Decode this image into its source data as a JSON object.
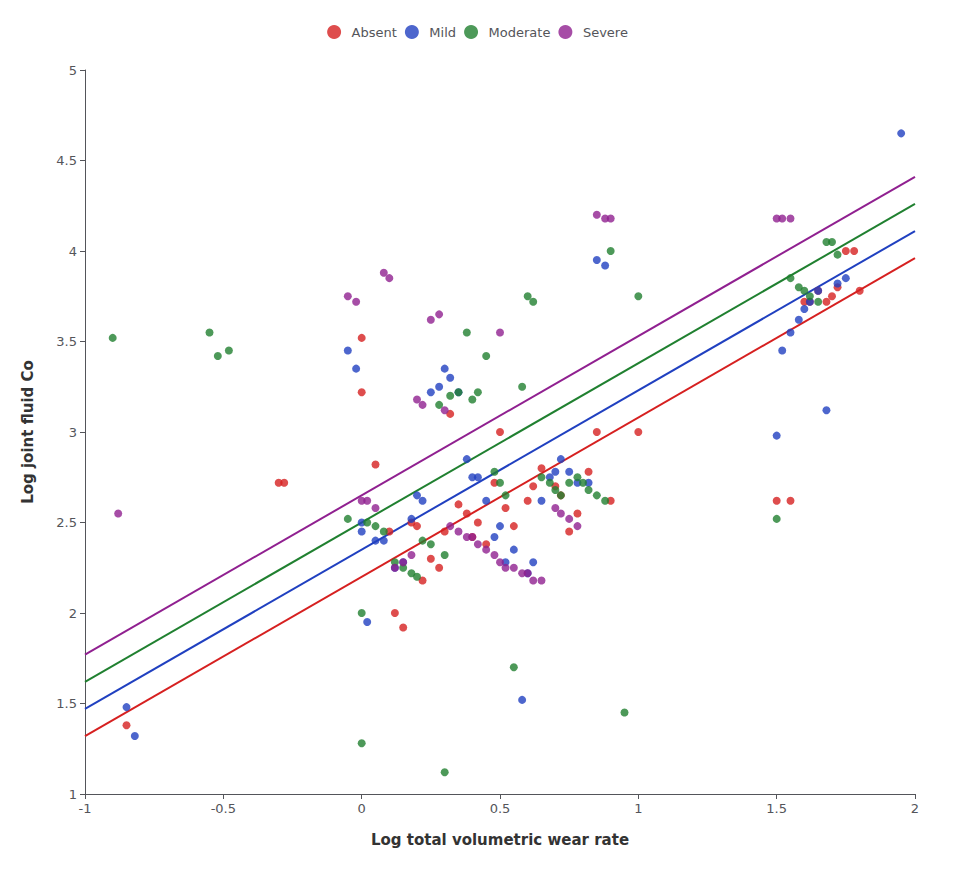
{
  "chart_data": {
    "type": "scatter",
    "xlabel": "Log total volumetric wear rate",
    "ylabel": "Log joint fluid Co",
    "xlim": [
      -1,
      2
    ],
    "ylim": [
      1,
      5
    ],
    "xticks": [
      -1,
      -0.5,
      0,
      0.5,
      1,
      1.5,
      2
    ],
    "yticks": [
      1,
      1.5,
      2,
      2.5,
      3,
      3.5,
      4,
      4.5,
      5
    ],
    "grid": false,
    "legend": "top",
    "series": [
      {
        "name": "Absent",
        "color": "#d62020",
        "regression_line": [
          [
            -1,
            1.32
          ],
          [
            2,
            3.96
          ]
        ],
        "values": [
          [
            -0.85,
            1.38
          ],
          [
            -0.3,
            2.72
          ],
          [
            -0.28,
            2.72
          ],
          [
            0.0,
            3.52
          ],
          [
            0.0,
            3.22
          ],
          [
            0.05,
            2.82
          ],
          [
            0.1,
            2.45
          ],
          [
            0.12,
            2.0
          ],
          [
            0.15,
            1.92
          ],
          [
            0.18,
            2.5
          ],
          [
            0.2,
            2.48
          ],
          [
            0.22,
            2.18
          ],
          [
            0.25,
            2.3
          ],
          [
            0.28,
            2.25
          ],
          [
            0.3,
            2.45
          ],
          [
            0.32,
            3.1
          ],
          [
            0.35,
            2.6
          ],
          [
            0.38,
            2.55
          ],
          [
            0.4,
            2.42
          ],
          [
            0.42,
            2.5
          ],
          [
            0.45,
            2.38
          ],
          [
            0.48,
            2.72
          ],
          [
            0.5,
            3.0
          ],
          [
            0.52,
            2.58
          ],
          [
            0.55,
            2.48
          ],
          [
            0.6,
            2.62
          ],
          [
            0.62,
            2.7
          ],
          [
            0.65,
            2.8
          ],
          [
            0.7,
            2.7
          ],
          [
            0.72,
            2.65
          ],
          [
            0.75,
            2.45
          ],
          [
            0.78,
            2.55
          ],
          [
            0.82,
            2.78
          ],
          [
            0.85,
            3.0
          ],
          [
            0.9,
            2.62
          ],
          [
            1.0,
            3.0
          ],
          [
            1.5,
            2.62
          ],
          [
            1.55,
            2.62
          ],
          [
            1.6,
            3.72
          ],
          [
            1.62,
            3.72
          ],
          [
            1.65,
            3.78
          ],
          [
            1.68,
            3.72
          ],
          [
            1.7,
            3.75
          ],
          [
            1.72,
            3.8
          ],
          [
            1.75,
            4.0
          ],
          [
            1.78,
            4.0
          ],
          [
            1.8,
            3.78
          ]
        ]
      },
      {
        "name": "Mild",
        "color": "#2040c0",
        "regression_line": [
          [
            -1,
            1.47
          ],
          [
            2,
            4.11
          ]
        ],
        "values": [
          [
            -0.85,
            1.48
          ],
          [
            -0.82,
            1.32
          ],
          [
            -0.05,
            3.45
          ],
          [
            -0.02,
            3.35
          ],
          [
            0.0,
            2.5
          ],
          [
            0.0,
            2.45
          ],
          [
            0.02,
            1.95
          ],
          [
            0.05,
            2.4
          ],
          [
            0.08,
            2.4
          ],
          [
            0.12,
            2.25
          ],
          [
            0.15,
            2.28
          ],
          [
            0.18,
            2.52
          ],
          [
            0.2,
            2.65
          ],
          [
            0.22,
            2.62
          ],
          [
            0.25,
            3.22
          ],
          [
            0.28,
            3.25
          ],
          [
            0.3,
            3.35
          ],
          [
            0.32,
            3.3
          ],
          [
            0.35,
            3.22
          ],
          [
            0.38,
            2.85
          ],
          [
            0.4,
            2.75
          ],
          [
            0.42,
            2.75
          ],
          [
            0.45,
            2.62
          ],
          [
            0.48,
            2.42
          ],
          [
            0.5,
            2.48
          ],
          [
            0.52,
            2.28
          ],
          [
            0.55,
            2.35
          ],
          [
            0.58,
            1.52
          ],
          [
            0.6,
            2.22
          ],
          [
            0.62,
            2.28
          ],
          [
            0.65,
            2.62
          ],
          [
            0.68,
            2.75
          ],
          [
            0.7,
            2.78
          ],
          [
            0.72,
            2.85
          ],
          [
            0.75,
            2.78
          ],
          [
            0.78,
            2.72
          ],
          [
            0.82,
            2.72
          ],
          [
            0.85,
            3.95
          ],
          [
            0.88,
            3.92
          ],
          [
            1.5,
            2.98
          ],
          [
            1.52,
            3.45
          ],
          [
            1.55,
            3.55
          ],
          [
            1.58,
            3.62
          ],
          [
            1.6,
            3.68
          ],
          [
            1.62,
            3.72
          ],
          [
            1.65,
            3.78
          ],
          [
            1.72,
            3.82
          ],
          [
            1.75,
            3.85
          ],
          [
            1.95,
            4.65
          ],
          [
            1.68,
            3.12
          ]
        ]
      },
      {
        "name": "Moderate",
        "color": "#208030",
        "regression_line": [
          [
            -1,
            1.62
          ],
          [
            2,
            4.26
          ]
        ],
        "values": [
          [
            -0.9,
            3.52
          ],
          [
            -0.55,
            3.55
          ],
          [
            -0.52,
            3.42
          ],
          [
            -0.48,
            3.45
          ],
          [
            -0.05,
            2.52
          ],
          [
            0.0,
            2.0
          ],
          [
            0.0,
            1.28
          ],
          [
            0.02,
            2.5
          ],
          [
            0.05,
            2.48
          ],
          [
            0.08,
            2.45
          ],
          [
            0.12,
            2.28
          ],
          [
            0.15,
            2.25
          ],
          [
            0.18,
            2.22
          ],
          [
            0.2,
            2.2
          ],
          [
            0.22,
            2.4
          ],
          [
            0.25,
            2.38
          ],
          [
            0.28,
            3.15
          ],
          [
            0.3,
            2.32
          ],
          [
            0.32,
            3.2
          ],
          [
            0.35,
            3.22
          ],
          [
            0.38,
            3.55
          ],
          [
            0.4,
            3.18
          ],
          [
            0.42,
            3.22
          ],
          [
            0.45,
            3.42
          ],
          [
            0.48,
            2.78
          ],
          [
            0.5,
            2.72
          ],
          [
            0.52,
            2.65
          ],
          [
            0.55,
            1.7
          ],
          [
            0.58,
            3.25
          ],
          [
            0.6,
            3.75
          ],
          [
            0.62,
            3.72
          ],
          [
            0.65,
            2.75
          ],
          [
            0.68,
            2.72
          ],
          [
            0.7,
            2.68
          ],
          [
            0.72,
            2.65
          ],
          [
            0.75,
            2.72
          ],
          [
            0.78,
            2.75
          ],
          [
            0.8,
            2.72
          ],
          [
            0.82,
            2.68
          ],
          [
            0.85,
            2.65
          ],
          [
            0.88,
            2.62
          ],
          [
            0.9,
            4.0
          ],
          [
            0.95,
            1.45
          ],
          [
            1.0,
            3.75
          ],
          [
            0.3,
            1.12
          ],
          [
            1.5,
            2.52
          ],
          [
            1.55,
            3.85
          ],
          [
            1.58,
            3.8
          ],
          [
            1.6,
            3.78
          ],
          [
            1.62,
            3.75
          ],
          [
            1.65,
            3.72
          ],
          [
            1.68,
            4.05
          ],
          [
            1.7,
            4.05
          ],
          [
            1.72,
            3.98
          ]
        ]
      },
      {
        "name": "Severe",
        "color": "#902090",
        "regression_line": [
          [
            -1,
            1.77
          ],
          [
            2,
            4.41
          ]
        ],
        "values": [
          [
            -0.88,
            2.55
          ],
          [
            -0.05,
            3.75
          ],
          [
            -0.02,
            3.72
          ],
          [
            0.0,
            2.62
          ],
          [
            0.02,
            2.62
          ],
          [
            0.05,
            2.58
          ],
          [
            0.08,
            3.88
          ],
          [
            0.1,
            3.85
          ],
          [
            0.12,
            2.25
          ],
          [
            0.15,
            2.28
          ],
          [
            0.18,
            2.32
          ],
          [
            0.2,
            3.18
          ],
          [
            0.22,
            3.15
          ],
          [
            0.25,
            3.62
          ],
          [
            0.28,
            3.65
          ],
          [
            0.3,
            3.12
          ],
          [
            0.32,
            2.48
          ],
          [
            0.35,
            2.45
          ],
          [
            0.38,
            2.42
          ],
          [
            0.4,
            2.42
          ],
          [
            0.42,
            2.38
          ],
          [
            0.45,
            2.35
          ],
          [
            0.48,
            2.32
          ],
          [
            0.5,
            3.55
          ],
          [
            0.5,
            2.28
          ],
          [
            0.52,
            2.25
          ],
          [
            0.55,
            2.25
          ],
          [
            0.58,
            2.22
          ],
          [
            0.6,
            2.22
          ],
          [
            0.62,
            2.18
          ],
          [
            0.65,
            2.18
          ],
          [
            0.7,
            2.58
          ],
          [
            0.72,
            2.55
          ],
          [
            0.75,
            2.52
          ],
          [
            0.78,
            2.48
          ],
          [
            0.85,
            4.2
          ],
          [
            0.88,
            4.18
          ],
          [
            0.9,
            4.18
          ],
          [
            1.5,
            4.18
          ],
          [
            1.52,
            4.18
          ],
          [
            1.55,
            4.18
          ]
        ]
      }
    ]
  }
}
